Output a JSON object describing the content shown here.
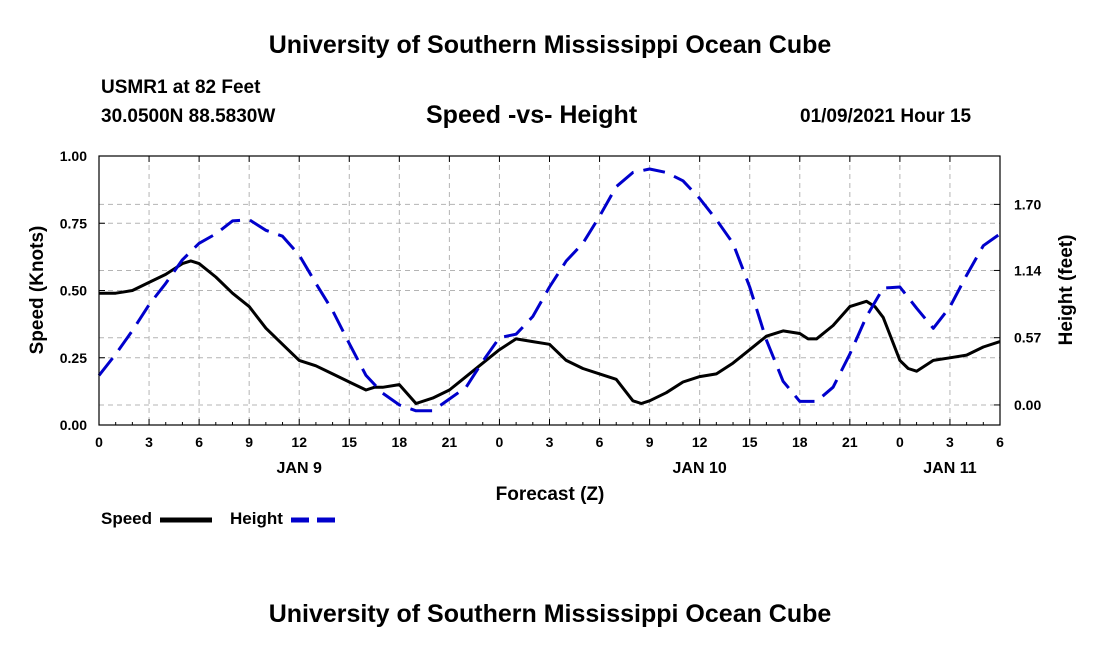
{
  "header": {
    "title": "University of Southern Mississippi Ocean Cube",
    "station": "USMR1 at 82 Feet",
    "coords": "30.0500N 88.5830W",
    "forecast_time": "01/09/2021 Hour 15"
  },
  "footer": {
    "title": "University of Southern Mississippi Ocean Cube"
  },
  "chart_data": {
    "type": "line",
    "title": "Speed -vs- Height",
    "xlabel": "Forecast (Z)",
    "ylabel_left": "Speed (Knots)",
    "ylabel_right": "Height (feet)",
    "xlim": [
      0,
      54
    ],
    "ylim_left": [
      0,
      1.0
    ],
    "ylim_right": [
      -0.17,
      2.11
    ],
    "x_ticks": [
      0,
      3,
      6,
      9,
      12,
      15,
      18,
      21,
      24,
      27,
      30,
      33,
      36,
      39,
      42,
      45,
      48,
      51,
      54
    ],
    "x_tick_labels": [
      "0",
      "3",
      "6",
      "9",
      "12",
      "15",
      "18",
      "21",
      "0",
      "3",
      "6",
      "9",
      "12",
      "15",
      "18",
      "21",
      "0",
      "3",
      "6"
    ],
    "date_labels": [
      {
        "x": 12,
        "label": "JAN 9"
      },
      {
        "x": 36,
        "label": "JAN 10"
      },
      {
        "x": 51,
        "label": "JAN 11"
      }
    ],
    "y_ticks_left": [
      "0.00",
      "0.25",
      "0.50",
      "0.75",
      "1.00"
    ],
    "y_ticks_left_values": [
      0,
      0.25,
      0.5,
      0.75,
      1.0
    ],
    "y_ticks_right": [
      "0.00",
      "0.57",
      "1.14",
      "1.70"
    ],
    "y_ticks_right_values": [
      0,
      0.57,
      1.14,
      1.7
    ],
    "grid": true,
    "legend_position": "bottom-left",
    "series": [
      {
        "name": "Speed",
        "axis": "left",
        "color": "#000000",
        "style": "solid",
        "x": [
          0,
          1,
          2,
          3,
          4,
          5,
          5.5,
          6,
          7,
          8,
          9,
          10,
          11,
          12,
          13,
          14,
          15,
          16,
          16.5,
          17,
          18,
          19,
          20,
          21,
          22,
          23,
          24,
          25,
          26,
          27,
          28,
          29,
          30,
          31,
          32,
          32.5,
          33,
          34,
          35,
          36,
          37,
          38,
          39,
          40,
          41,
          42,
          42.5,
          43,
          44,
          45,
          46,
          46.5,
          47,
          48,
          48.5,
          49,
          50,
          51,
          52,
          53,
          54
        ],
        "values": [
          0.49,
          0.49,
          0.5,
          0.53,
          0.56,
          0.6,
          0.61,
          0.6,
          0.55,
          0.49,
          0.44,
          0.36,
          0.3,
          0.24,
          0.22,
          0.19,
          0.16,
          0.13,
          0.14,
          0.14,
          0.15,
          0.08,
          0.1,
          0.13,
          0.18,
          0.23,
          0.28,
          0.32,
          0.31,
          0.3,
          0.24,
          0.21,
          0.19,
          0.17,
          0.09,
          0.08,
          0.09,
          0.12,
          0.16,
          0.18,
          0.19,
          0.23,
          0.28,
          0.33,
          0.35,
          0.34,
          0.32,
          0.32,
          0.37,
          0.44,
          0.46,
          0.44,
          0.4,
          0.24,
          0.21,
          0.2,
          0.24,
          0.25,
          0.26,
          0.29,
          0.31
        ]
      },
      {
        "name": "Height",
        "axis": "right",
        "color": "#0000cc",
        "style": "dashed",
        "x": [
          0,
          1,
          2,
          3,
          4,
          5,
          6,
          7,
          8,
          9,
          10,
          11,
          12,
          13,
          14,
          15,
          16,
          17,
          18,
          19,
          20,
          21,
          22,
          23,
          24,
          25,
          26,
          27,
          28,
          29,
          30,
          31,
          32,
          33,
          34,
          35,
          36,
          37,
          38,
          39,
          40,
          41,
          42,
          43,
          44,
          45,
          46,
          47,
          48,
          49,
          50,
          51,
          52,
          53,
          54
        ],
        "values": [
          0.25,
          0.43,
          0.63,
          0.85,
          1.03,
          1.23,
          1.37,
          1.45,
          1.56,
          1.57,
          1.48,
          1.43,
          1.27,
          1.03,
          0.8,
          0.52,
          0.25,
          0.1,
          0.0,
          -0.05,
          -0.05,
          0.05,
          0.15,
          0.37,
          0.57,
          0.6,
          0.75,
          1.0,
          1.22,
          1.37,
          1.6,
          1.85,
          1.97,
          2.0,
          1.97,
          1.9,
          1.75,
          1.57,
          1.37,
          1.0,
          0.55,
          0.2,
          0.03,
          0.03,
          0.15,
          0.43,
          0.75,
          0.99,
          1.0,
          0.82,
          0.65,
          0.83,
          1.1,
          1.35,
          1.45
        ]
      }
    ]
  }
}
